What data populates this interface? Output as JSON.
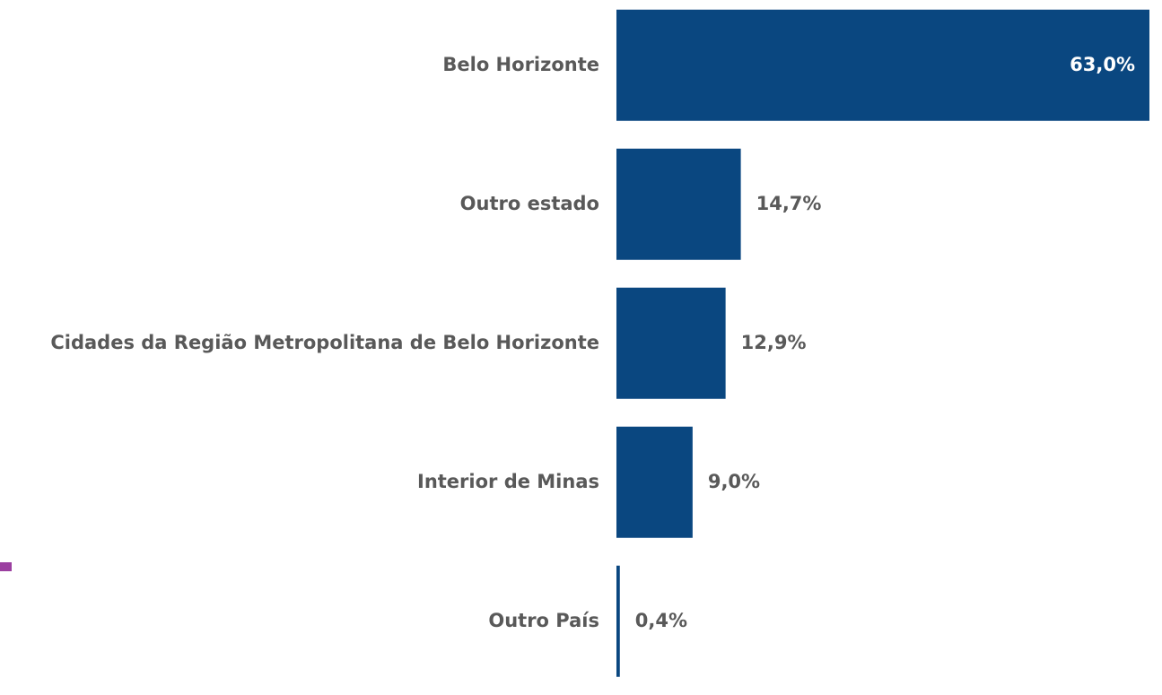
{
  "chart_data": {
    "type": "hbar",
    "categories": [
      "Belo Horizonte",
      "Outro estado",
      "Cidades da Região Metropolitana de Belo Horizonte",
      "Interior de Minas",
      "Outro País"
    ],
    "values": [
      63.0,
      14.7,
      12.9,
      9.0,
      0.4
    ],
    "value_labels": [
      "63,0%",
      "14,7%",
      "12,9%",
      "9,0%",
      "0,4%"
    ],
    "color": "#0a4780"
  }
}
